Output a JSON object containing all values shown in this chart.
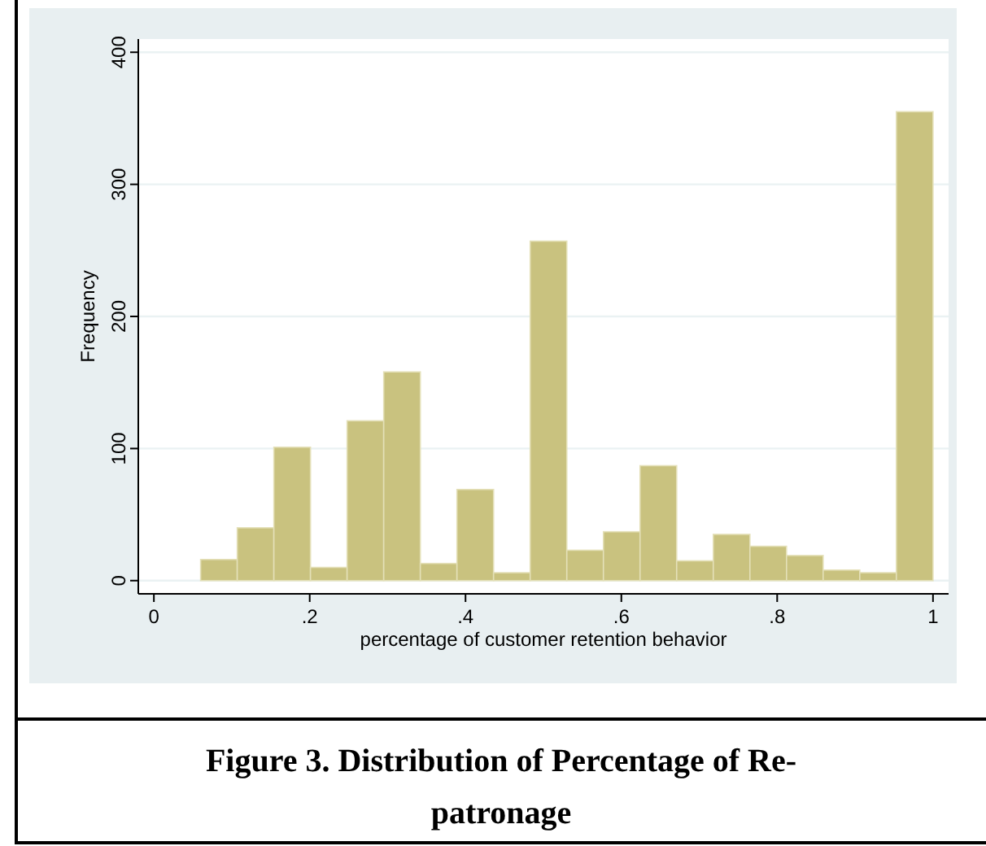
{
  "chart_data": {
    "type": "histogram",
    "title": "Figure 3. Distribution of Percentage of Re-patronage",
    "xlabel": "percentage of customer retention behavior",
    "ylabel": "Frequency",
    "bins": [
      0.06,
      0.107,
      0.154,
      0.201,
      0.248,
      0.295,
      0.342,
      0.389,
      0.436,
      0.483,
      0.53,
      0.577,
      0.624,
      0.671,
      0.718,
      0.765,
      0.812,
      0.859,
      0.906,
      0.953,
      1.0
    ],
    "values": [
      16,
      40,
      101,
      10,
      121,
      158,
      13,
      69,
      6,
      257,
      23,
      37,
      87,
      15,
      35,
      26,
      19,
      8,
      6,
      355
    ],
    "color": "#c9c27f",
    "xlim": [
      -0.02,
      1.02
    ],
    "ylim": [
      -10,
      410
    ],
    "xticks": [
      0,
      {
        "value": 0.2,
        "label": ".2"
      },
      {
        "value": 0.4,
        "label": ".4"
      },
      {
        "value": 0.6,
        "label": ".6"
      },
      {
        "value": 0.8,
        "label": ".8"
      },
      1
    ],
    "yticks": [
      0,
      100,
      200,
      300,
      400
    ],
    "grid": "y"
  }
}
